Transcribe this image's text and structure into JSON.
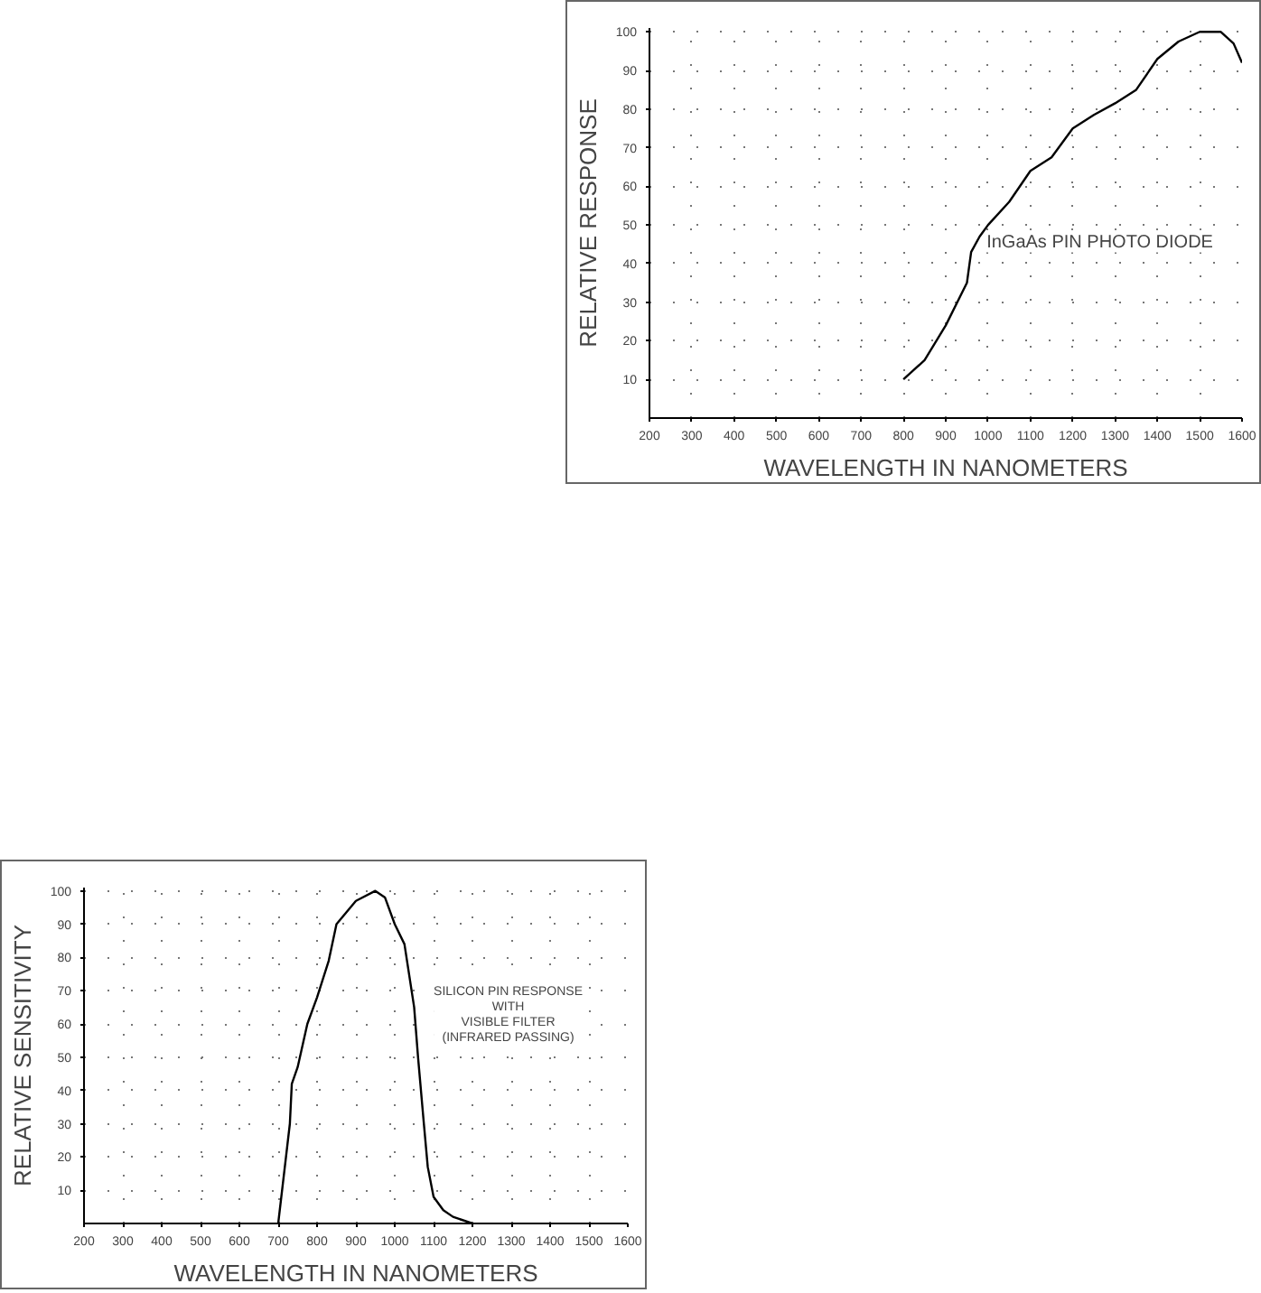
{
  "chart_data": [
    {
      "type": "line",
      "xlabel": "WAVELENGTH IN NANOMETERS",
      "ylabel": "RELATIVE RESPONSE",
      "annotations": [
        "InGaAs PIN PHOTO DIODE"
      ],
      "x": [
        800,
        850,
        900,
        950,
        960,
        980,
        1000,
        1050,
        1100,
        1150,
        1200,
        1250,
        1300,
        1350,
        1400,
        1450,
        1500,
        1550,
        1580,
        1600
      ],
      "series": [
        {
          "color": "#000000",
          "values": [
            10,
            15,
            24,
            35,
            43,
            47,
            50,
            56,
            64,
            67.5,
            75,
            78.5,
            81.5,
            85,
            93,
            97.5,
            100,
            100,
            97,
            92
          ]
        }
      ],
      "xlim": [
        200,
        1600
      ],
      "ylim": [
        0,
        101
      ],
      "xticks": [
        200,
        300,
        400,
        500,
        600,
        700,
        800,
        900,
        1000,
        1100,
        1200,
        1300,
        1400,
        1500,
        1600
      ],
      "yticks": [
        10,
        20,
        30,
        40,
        50,
        60,
        70,
        80,
        90,
        100
      ],
      "grid": true
    },
    {
      "type": "line",
      "xlabel": "WAVELENGTH IN NANOMETERS",
      "ylabel": "RELATIVE SENSITIVITY",
      "annotations": [
        "SILICON PIN RESPONSE\nWITH\nVISIBLE FILTER\n(INFRARED PASSING)"
      ],
      "x": [
        700,
        720,
        730,
        735,
        750,
        775,
        800,
        830,
        850,
        900,
        950,
        975,
        1000,
        1025,
        1050,
        1060,
        1075,
        1085,
        1100,
        1125,
        1150,
        1200
      ],
      "series": [
        {
          "color": "#000000",
          "values": [
            0,
            20,
            30,
            42,
            47,
            60,
            68,
            79,
            90,
            97,
            100,
            98,
            90,
            84,
            65,
            50,
            30,
            17,
            8,
            4,
            2,
            0
          ]
        }
      ],
      "xlim": [
        200,
        1600
      ],
      "ylim": [
        0,
        101
      ],
      "xticks": [
        200,
        300,
        400,
        500,
        600,
        700,
        800,
        900,
        1000,
        1100,
        1200,
        1300,
        1400,
        1500,
        1600
      ],
      "yticks": [
        10,
        20,
        30,
        40,
        50,
        60,
        70,
        80,
        90,
        100
      ],
      "grid": true
    }
  ]
}
